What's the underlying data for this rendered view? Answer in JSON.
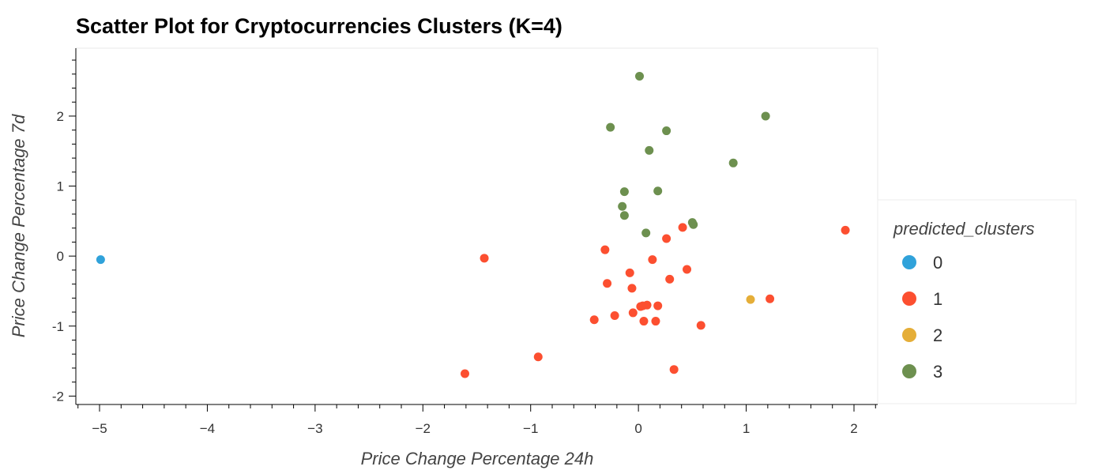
{
  "chart_data": {
    "type": "scatter",
    "title": "Scatter Plot for Cryptocurrencies Clusters (K=4)",
    "xlabel": "Price Change Percentage 24h",
    "ylabel": "Price Change Percentage 7d",
    "xlim": [
      -5.22,
      2.22
    ],
    "ylim": [
      -2.12,
      2.97
    ],
    "x_ticks": [
      -5,
      -4,
      -3,
      -2,
      -1,
      0,
      1,
      2
    ],
    "x_tick_labels": [
      "−5",
      "−4",
      "−3",
      "−2",
      "−1",
      "0",
      "1",
      "2"
    ],
    "y_ticks": [
      -2,
      -1,
      0,
      1,
      2
    ],
    "y_tick_labels": [
      "-2",
      "-1",
      "0",
      "1",
      "2"
    ],
    "grid": false,
    "legend": {
      "title": "predicted_clusters",
      "placement": "right"
    },
    "series": [
      {
        "name": "0",
        "color": "#30a2da",
        "points": [
          [
            -4.99,
            -0.05
          ]
        ]
      },
      {
        "name": "1",
        "color": "#fc4f30",
        "points": [
          [
            -1.43,
            -0.03
          ],
          [
            -1.61,
            -1.68
          ],
          [
            -0.93,
            -1.44
          ],
          [
            -0.41,
            -0.91
          ],
          [
            -0.31,
            0.09
          ],
          [
            -0.29,
            -0.39
          ],
          [
            -0.22,
            -0.85
          ],
          [
            -0.08,
            -0.24
          ],
          [
            -0.06,
            -0.46
          ],
          [
            -0.05,
            -0.81
          ],
          [
            0.02,
            -0.72
          ],
          [
            0.04,
            -0.71
          ],
          [
            0.05,
            -0.93
          ],
          [
            0.08,
            -0.7
          ],
          [
            0.13,
            -0.05
          ],
          [
            0.16,
            -0.93
          ],
          [
            0.18,
            -0.71
          ],
          [
            0.26,
            0.25
          ],
          [
            0.29,
            -0.33
          ],
          [
            0.33,
            -1.62
          ],
          [
            0.41,
            0.41
          ],
          [
            0.45,
            -0.19
          ],
          [
            0.58,
            -0.99
          ],
          [
            1.22,
            -0.61
          ],
          [
            1.92,
            0.37
          ]
        ]
      },
      {
        "name": "2",
        "color": "#e5ae38",
        "points": [
          [
            1.04,
            -0.62
          ]
        ]
      },
      {
        "name": "3",
        "color": "#6d904f",
        "points": [
          [
            0.01,
            2.57
          ],
          [
            -0.26,
            1.84
          ],
          [
            0.26,
            1.79
          ],
          [
            0.1,
            1.51
          ],
          [
            1.18,
            2.0
          ],
          [
            0.88,
            1.33
          ],
          [
            -0.13,
            0.92
          ],
          [
            0.18,
            0.93
          ],
          [
            -0.15,
            0.71
          ],
          [
            -0.13,
            0.58
          ],
          [
            0.07,
            0.33
          ],
          [
            0.5,
            0.48
          ],
          [
            0.51,
            0.45
          ]
        ]
      }
    ]
  }
}
